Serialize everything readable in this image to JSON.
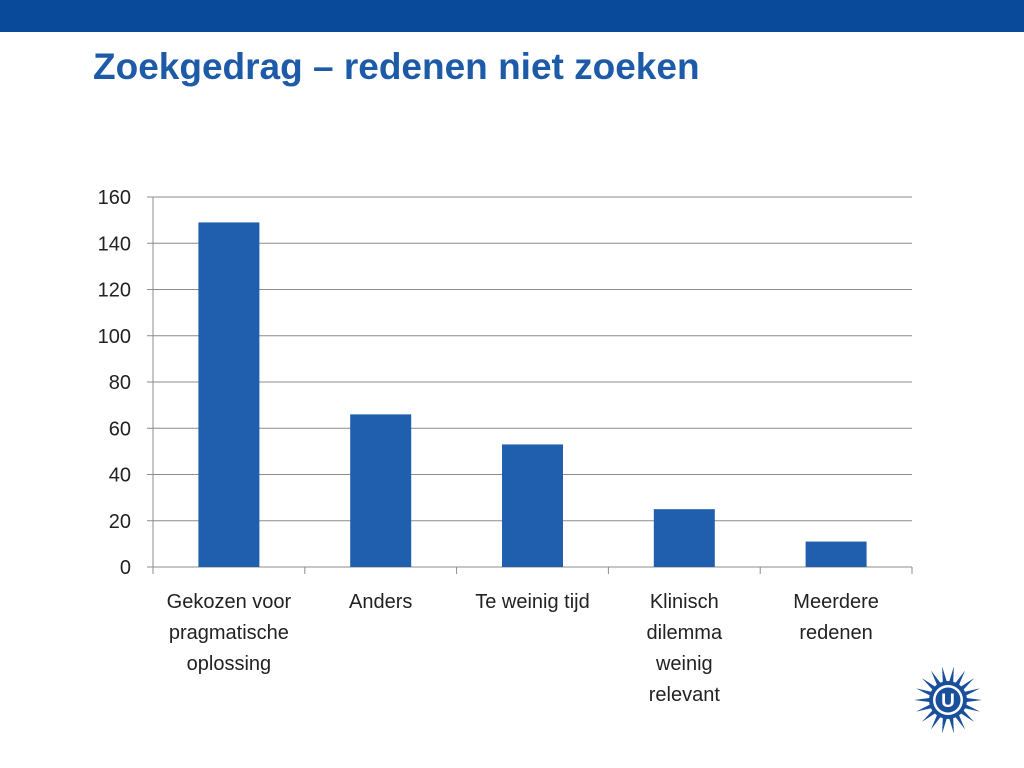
{
  "slide": {
    "title": "Zoekgedrag – redenen niet zoeken"
  },
  "logo": {
    "letter": "U",
    "color": "#1a4f9c"
  },
  "colors": {
    "top_bar": "#0a4a9a",
    "title": "#1d5aa8",
    "bar": "#1f5fad"
  },
  "chart_data": {
    "type": "bar",
    "categories": [
      [
        "Gekozen voor",
        "pragmatische",
        "oplossing"
      ],
      [
        "Anders"
      ],
      [
        "Te weinig tijd"
      ],
      [
        "Klinisch",
        "dilemma",
        "weinig",
        "relevant"
      ],
      [
        "Meerdere",
        "redenen"
      ]
    ],
    "values": [
      149,
      66,
      53,
      25,
      11
    ],
    "yticks": [
      0,
      20,
      40,
      60,
      80,
      100,
      120,
      140,
      160
    ],
    "ylim": [
      0,
      160
    ],
    "grid": true,
    "legend": "none"
  }
}
